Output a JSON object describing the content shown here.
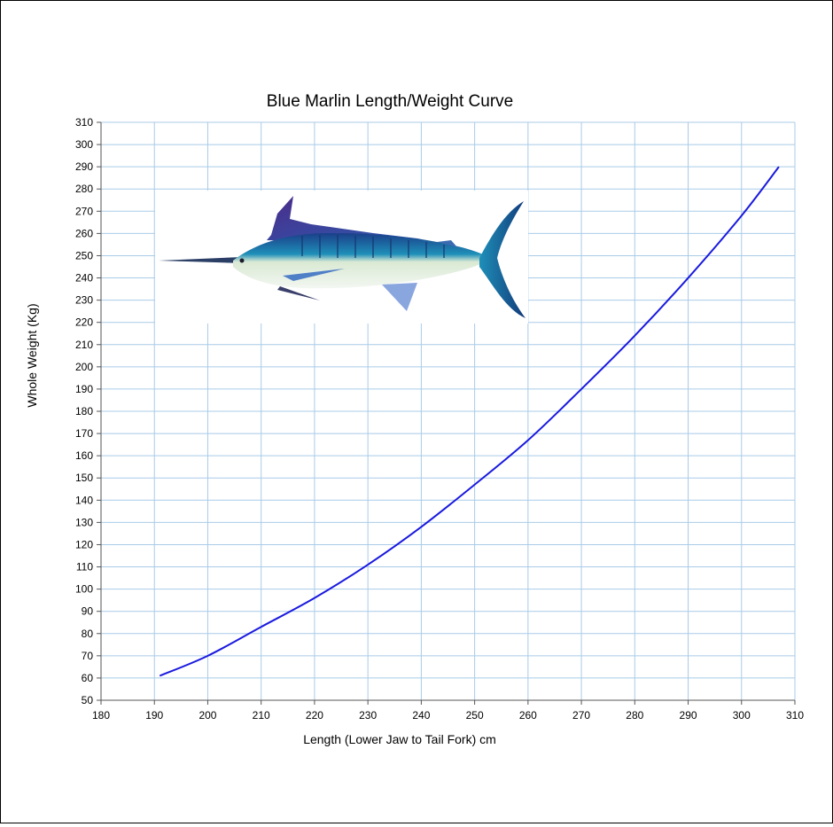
{
  "chart_data": {
    "type": "line",
    "title": "Blue Marlin Length/Weight Curve",
    "xlabel": "Length (Lower Jaw to Tail Fork) cm",
    "ylabel": "Whole Weight (Kg)",
    "xlim": [
      180,
      310
    ],
    "ylim": [
      50,
      310
    ],
    "xticks": [
      "180",
      "190",
      "200",
      "210",
      "220",
      "230",
      "240",
      "250",
      "260",
      "270",
      "280",
      "290",
      "300",
      "310"
    ],
    "yticks": [
      "50",
      "60",
      "70",
      "80",
      "90",
      "100",
      "110",
      "120",
      "130",
      "140",
      "150",
      "160",
      "170",
      "180",
      "190",
      "200",
      "210",
      "220",
      "230",
      "240",
      "250",
      "260",
      "270",
      "280",
      "290",
      "300",
      "310"
    ],
    "grid": true,
    "legend": "none",
    "series": [
      {
        "color": "#1a1adf",
        "x": [
          191,
          200,
          210,
          220,
          230,
          240,
          250,
          260,
          270,
          280,
          290,
          300,
          307
        ],
        "y": [
          61,
          70,
          83,
          96,
          111,
          128,
          147,
          167,
          190,
          214,
          240,
          268,
          290
        ]
      }
    ],
    "annotations": [
      {
        "kind": "image",
        "depicts": "blue-marlin-fish"
      }
    ]
  }
}
